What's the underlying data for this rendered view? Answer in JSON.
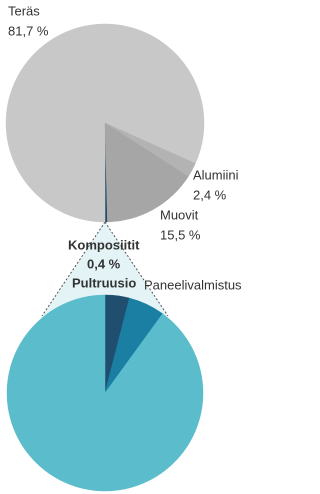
{
  "chart_data": [
    {
      "type": "pie",
      "categories": [
        "Komposiitit",
        "Teräs",
        "Alumiini",
        "Muovit"
      ],
      "values": [
        0.4,
        81.7,
        2.4,
        15.5
      ],
      "value_labels": [
        "0,4 %",
        "81,7 %",
        "2,4 %",
        "15,5 %"
      ],
      "colors": [
        "#1f4e6e",
        "#c8c8c8",
        "#b3b3b3",
        "#a6a6a6"
      ]
    },
    {
      "type": "pie",
      "categories": [
        null,
        "Paneelivalmistus",
        "Pultruusio"
      ],
      "values": [
        4,
        6,
        90
      ],
      "colors": [
        "#1f4e6e",
        "#1a7fa3",
        "#5bbccc"
      ]
    }
  ]
}
